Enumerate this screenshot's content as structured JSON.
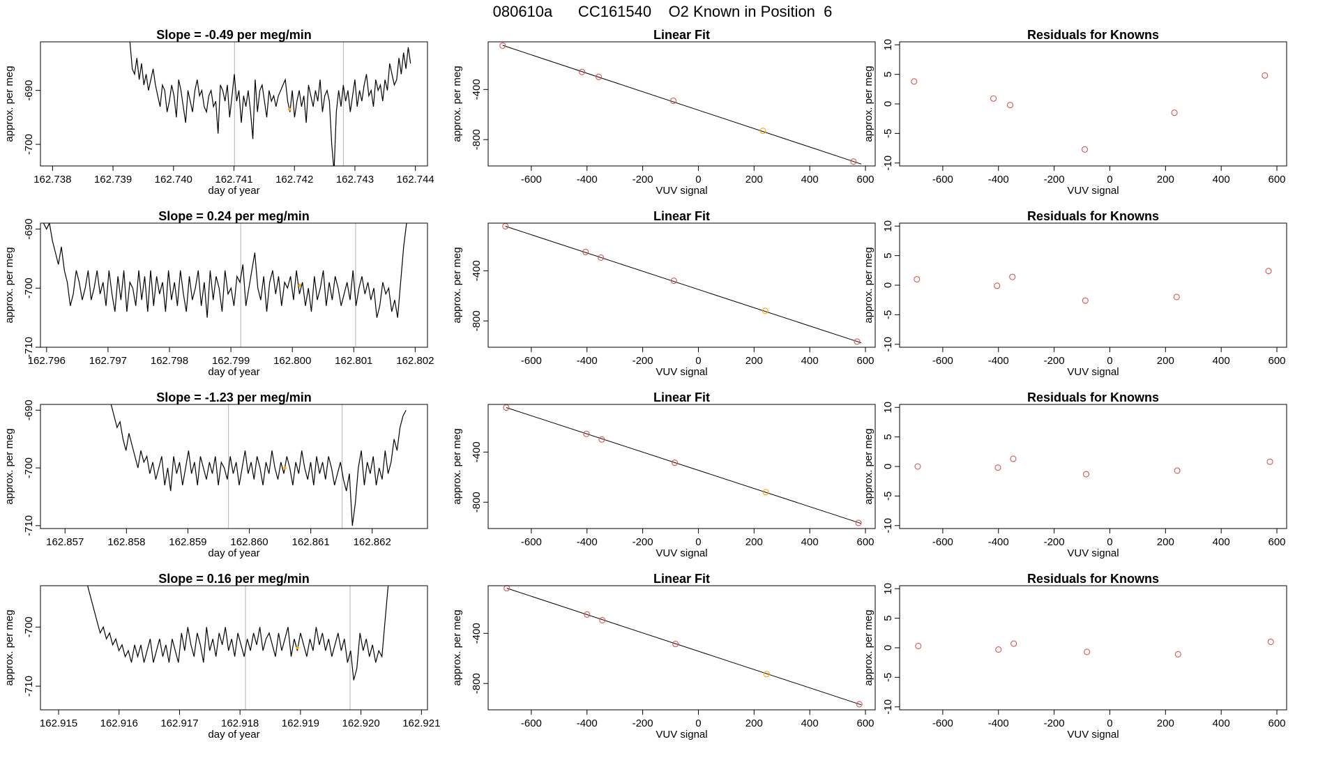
{
  "figure": {
    "title": "080610a      CC161540    O2 Known in Position  6"
  },
  "colors": {
    "line": "#000000",
    "frame": "#000000",
    "vline": "#bebebe",
    "point": "#d9534f",
    "highlight": "#ffa500"
  },
  "chart_data": [
    {
      "row": 1,
      "type": "line",
      "title": "Slope =  -0.49  per meg/min",
      "xlabel": "day of year",
      "ylabel": "approx. per meg",
      "xlim": [
        162.7378,
        162.7442
      ],
      "ylim": [
        -704,
        -681
      ],
      "xticks": [
        162.738,
        162.739,
        162.74,
        162.741,
        162.742,
        162.743,
        162.744
      ],
      "xtick_labels": [
        "162.738",
        "162.739",
        "162.740",
        "162.741",
        "162.742",
        "162.743",
        "162.744"
      ],
      "yticks": [
        -690,
        -700
      ],
      "ytick_labels": [
        "-690",
        "-700"
      ],
      "vlines": [
        162.74101,
        162.74281
      ],
      "x_start": 162.73928,
      "x_end": 162.74392,
      "y_values": [
        -681,
        -686,
        -687,
        -684,
        -688,
        -685,
        -689,
        -687,
        -690,
        -688,
        -686,
        -689,
        -691,
        -693,
        -689,
        -690,
        -694,
        -692,
        -689,
        -691,
        -695,
        -688,
        -690,
        -693,
        -696,
        -690,
        -692,
        -694,
        -690,
        -688,
        -691,
        -690,
        -693,
        -694,
        -691,
        -690,
        -693,
        -692,
        -698,
        -689,
        -690,
        -692,
        -689,
        -695,
        -691,
        -687,
        -692,
        -690,
        -696,
        -691,
        -693,
        -690,
        -694,
        -699,
        -688,
        -694,
        -690,
        -689,
        -692,
        -695,
        -690,
        -692,
        -691,
        -693,
        -691,
        -690,
        -689,
        -688,
        -692,
        -694,
        -690,
        -695,
        -692,
        -690,
        -693,
        -691,
        -696,
        -689,
        -691,
        -693,
        -690,
        -692,
        -688,
        -694,
        -691,
        -690,
        -692,
        -700,
        -705,
        -694,
        -690,
        -693,
        -689,
        -692,
        -690,
        -694,
        -691,
        -688,
        -693,
        -690,
        -692,
        -689,
        -687,
        -691,
        -690,
        -693,
        -688,
        -690,
        -689,
        -692,
        -688,
        -690,
        -685,
        -687,
        -689,
        -688,
        -684,
        -687,
        -683,
        -686,
        -682,
        -685
      ],
      "highlight": {
        "x": 162.74192,
        "y": -693.5
      }
    },
    {
      "row": 1,
      "type": "scatter",
      "title": "Linear Fit",
      "xlabel": "VUV signal",
      "ylabel": "approx. per meg",
      "xlim": [
        -755,
        635
      ],
      "ylim": [
        -1010,
        -20
      ],
      "xticks": [
        -600,
        -400,
        -200,
        0,
        200,
        400,
        600
      ],
      "xtick_labels": [
        "-600",
        "-400",
        "-200",
        "0",
        "200",
        "400",
        "600"
      ],
      "yticks": [
        -400,
        -800
      ],
      "ytick_labels": [
        "-400",
        "-800"
      ],
      "points": [
        {
          "x": -703,
          "y": -50
        },
        {
          "x": -418,
          "y": -260
        },
        {
          "x": -358,
          "y": -300
        },
        {
          "x": -90,
          "y": -490
        },
        {
          "x": 232,
          "y": -730
        },
        {
          "x": 557,
          "y": -975
        }
      ],
      "highlight_index": 4,
      "fit_line": {
        "x": [
          -703,
          585
        ],
        "y": [
          -48,
          -995
        ]
      }
    },
    {
      "row": 1,
      "type": "scatter",
      "title": "Residuals for Knowns",
      "xlabel": "VUV signal",
      "ylabel": "approx. per meg",
      "xlim": [
        -755,
        635
      ],
      "ylim": [
        -10.5,
        10.5
      ],
      "xticks": [
        -600,
        -400,
        -200,
        0,
        200,
        400,
        600
      ],
      "xtick_labels": [
        "-600",
        "-400",
        "-200",
        "0",
        "200",
        "400",
        "600"
      ],
      "yticks": [
        10,
        5,
        0,
        -5,
        -10
      ],
      "ytick_labels": [
        "10",
        "5",
        "0",
        "-5",
        "-10"
      ],
      "points": [
        {
          "x": -703,
          "y": 3.8
        },
        {
          "x": -418,
          "y": 0.9
        },
        {
          "x": -358,
          "y": -0.2
        },
        {
          "x": -90,
          "y": -7.7
        },
        {
          "x": 232,
          "y": -1.5
        },
        {
          "x": 557,
          "y": 4.8
        }
      ]
    },
    {
      "row": 2,
      "type": "line",
      "title": "Slope =  0.24  per meg/min",
      "xlabel": "day of year",
      "ylabel": "approx. per meg",
      "xlim": [
        162.7959,
        162.8022
      ],
      "ylim": [
        -710,
        -689
      ],
      "xticks": [
        162.796,
        162.797,
        162.798,
        162.799,
        162.8,
        162.801,
        162.802
      ],
      "xtick_labels": [
        "162.796",
        "162.797",
        "162.798",
        "162.799",
        "162.800",
        "162.801",
        "162.802"
      ],
      "yticks": [
        -690,
        -700,
        -710
      ],
      "ytick_labels": [
        "-690",
        "-700",
        "-710"
      ],
      "vlines": [
        162.79916,
        162.80103
      ],
      "x_start": 162.79595,
      "x_end": 162.80186,
      "y_values": [
        -689,
        -690,
        -689,
        -692,
        -694,
        -696,
        -693,
        -697,
        -699,
        -703,
        -701,
        -697,
        -699,
        -702,
        -700,
        -697,
        -702,
        -700,
        -697,
        -701,
        -699,
        -703,
        -697,
        -701,
        -704,
        -698,
        -702,
        -697,
        -704,
        -699,
        -700,
        -703,
        -697,
        -702,
        -698,
        -704,
        -697,
        -703,
        -698,
        -701,
        -699,
        -704,
        -697,
        -702,
        -699,
        -703,
        -697,
        -701,
        -704,
        -698,
        -702,
        -700,
        -697,
        -703,
        -699,
        -705,
        -697,
        -702,
        -698,
        -700,
        -704,
        -697,
        -701,
        -700,
        -703,
        -698,
        -699,
        -696,
        -703,
        -700,
        -697,
        -694,
        -700,
        -702,
        -698,
        -704,
        -699,
        -697,
        -701,
        -698,
        -703,
        -699,
        -700,
        -698,
        -702,
        -697,
        -701,
        -699,
        -703,
        -700,
        -704,
        -698,
        -702,
        -700,
        -697,
        -703,
        -699,
        -702,
        -698,
        -700,
        -703,
        -701,
        -699,
        -702,
        -697,
        -703,
        -700,
        -698,
        -701,
        -699,
        -702,
        -700,
        -705,
        -703,
        -699,
        -701,
        -700,
        -704,
        -702,
        -705,
        -699,
        -693,
        -689
      ],
      "highlight": {
        "x": 162.80012,
        "y": -699.5
      }
    },
    {
      "row": 2,
      "type": "scatter",
      "title": "Linear Fit",
      "xlabel": "VUV signal",
      "ylabel": "approx. per meg",
      "xlim": [
        -755,
        635
      ],
      "ylim": [
        -1010,
        -20
      ],
      "xticks": [
        -600,
        -400,
        -200,
        0,
        200,
        400,
        600
      ],
      "xtick_labels": [
        "-600",
        "-400",
        "-200",
        "0",
        "200",
        "400",
        "600"
      ],
      "yticks": [
        -400,
        -800
      ],
      "ytick_labels": [
        "-400",
        "-800"
      ],
      "points": [
        {
          "x": -693,
          "y": -45
        },
        {
          "x": -405,
          "y": -250
        },
        {
          "x": -350,
          "y": -295
        },
        {
          "x": -88,
          "y": -480
        },
        {
          "x": 240,
          "y": -720
        },
        {
          "x": 570,
          "y": -965
        }
      ],
      "highlight_index": 4,
      "fit_line": {
        "x": [
          -693,
          585
        ],
        "y": [
          -45,
          -975
        ]
      }
    },
    {
      "row": 2,
      "type": "scatter",
      "title": "Residuals for Knowns",
      "xlabel": "VUV signal",
      "ylabel": "approx. per meg",
      "xlim": [
        -755,
        635
      ],
      "ylim": [
        -10.5,
        10.5
      ],
      "xticks": [
        -600,
        -400,
        -200,
        0,
        200,
        400,
        600
      ],
      "xtick_labels": [
        "-600",
        "-400",
        "-200",
        "0",
        "200",
        "400",
        "600"
      ],
      "yticks": [
        10,
        5,
        0,
        -5,
        -10
      ],
      "ytick_labels": [
        "10",
        "5",
        "0",
        "-5",
        "-10"
      ],
      "points": [
        {
          "x": -693,
          "y": 1.0
        },
        {
          "x": -405,
          "y": -0.1
        },
        {
          "x": -350,
          "y": 1.4
        },
        {
          "x": -88,
          "y": -2.6
        },
        {
          "x": 240,
          "y": -2.0
        },
        {
          "x": 570,
          "y": 2.4
        }
      ]
    },
    {
      "row": 3,
      "type": "line",
      "title": "Slope =  -1.23  per meg/min",
      "xlabel": "day of year",
      "ylabel": "approx. per meg",
      "xlim": [
        162.8566,
        162.8629
      ],
      "ylim": [
        -710.5,
        -689
      ],
      "xticks": [
        162.857,
        162.858,
        162.859,
        162.86,
        162.861,
        162.862
      ],
      "xtick_labels": [
        "162.857",
        "162.858",
        "162.859",
        "162.860",
        "162.861",
        "162.862"
      ],
      "yticks": [
        -690,
        -700,
        -710
      ],
      "ytick_labels": [
        "-690",
        "-700",
        "-710"
      ],
      "vlines": [
        162.85966,
        162.86151
      ],
      "x_start": 162.85775,
      "x_end": 162.86255,
      "y_values": [
        -689,
        -691,
        -693,
        -692,
        -695,
        -697,
        -694,
        -696,
        -698,
        -700,
        -697,
        -699,
        -698,
        -701,
        -699,
        -702,
        -700,
        -698,
        -703,
        -700,
        -704,
        -698,
        -701,
        -699,
        -703,
        -700,
        -697,
        -701,
        -699,
        -703,
        -698,
        -700,
        -702,
        -699,
        -701,
        -698,
        -703,
        -699,
        -700,
        -702,
        -698,
        -701,
        -699,
        -703,
        -700,
        -697,
        -701,
        -699,
        -702,
        -698,
        -700,
        -703,
        -699,
        -701,
        -697,
        -700,
        -702,
        -699,
        -701,
        -698,
        -700,
        -703,
        -699,
        -701,
        -697,
        -700,
        -702,
        -699,
        -703,
        -698,
        -701,
        -699,
        -702,
        -698,
        -700,
        -703,
        -701,
        -699,
        -702,
        -704,
        -701,
        -710,
        -706,
        -700,
        -697,
        -703,
        -699,
        -701,
        -698,
        -703,
        -700,
        -702,
        -697,
        -701,
        -699,
        -695,
        -697,
        -693,
        -691,
        -690
      ],
      "highlight": {
        "x": 162.86058,
        "y": -700
      }
    },
    {
      "row": 3,
      "type": "scatter",
      "title": "Linear Fit",
      "xlabel": "VUV signal",
      "ylabel": "approx. per meg",
      "xlim": [
        -755,
        635
      ],
      "ylim": [
        -1010,
        -20
      ],
      "xticks": [
        -600,
        -400,
        -200,
        0,
        200,
        400,
        600
      ],
      "xtick_labels": [
        "-600",
        "-400",
        "-200",
        "0",
        "200",
        "400",
        "600"
      ],
      "yticks": [
        -400,
        -800
      ],
      "ytick_labels": [
        "-400",
        "-800"
      ],
      "points": [
        {
          "x": -690,
          "y": -45
        },
        {
          "x": -402,
          "y": -255
        },
        {
          "x": -347,
          "y": -300
        },
        {
          "x": -85,
          "y": -485
        },
        {
          "x": 242,
          "y": -720
        },
        {
          "x": 575,
          "y": -965
        }
      ],
      "highlight_index": 4,
      "fit_line": {
        "x": [
          -690,
          585
        ],
        "y": [
          -45,
          -970
        ]
      }
    },
    {
      "row": 3,
      "type": "scatter",
      "title": "Residuals for Knowns",
      "xlabel": "VUV signal",
      "ylabel": "approx. per meg",
      "xlim": [
        -755,
        635
      ],
      "ylim": [
        -10.5,
        10.5
      ],
      "xticks": [
        -600,
        -400,
        -200,
        0,
        200,
        400,
        600
      ],
      "xtick_labels": [
        "-600",
        "-400",
        "-200",
        "0",
        "200",
        "400",
        "600"
      ],
      "yticks": [
        10,
        5,
        0,
        -5,
        -10
      ],
      "ytick_labels": [
        "10",
        "5",
        "0",
        "-5",
        "-10"
      ],
      "points": [
        {
          "x": -690,
          "y": 0.0
        },
        {
          "x": -402,
          "y": -0.2
        },
        {
          "x": -347,
          "y": 1.3
        },
        {
          "x": -85,
          "y": -1.3
        },
        {
          "x": 242,
          "y": -0.7
        },
        {
          "x": 575,
          "y": 0.8
        }
      ]
    },
    {
      "row": 4,
      "type": "line",
      "title": "Slope =  0.16  per meg/min",
      "xlabel": "day of year",
      "ylabel": "approx. per meg",
      "xlim": [
        162.9147,
        162.9211
      ],
      "ylim": [
        -714,
        -693
      ],
      "xticks": [
        162.915,
        162.916,
        162.917,
        162.918,
        162.919,
        162.92,
        162.921
      ],
      "xtick_labels": [
        "162.915",
        "162.916",
        "162.917",
        "162.918",
        "162.919",
        "162.920",
        "162.921"
      ],
      "yticks": [
        -700,
        -710
      ],
      "ytick_labels": [
        "-700",
        "-710"
      ],
      "vlines": [
        162.91809,
        162.91982
      ],
      "x_start": 162.91548,
      "x_end": 162.92045,
      "y_values": [
        -693,
        -695,
        -697,
        -699,
        -701,
        -700,
        -702,
        -701,
        -703,
        -702,
        -704,
        -703,
        -705,
        -704,
        -706,
        -703,
        -705,
        -703,
        -706,
        -704,
        -702,
        -706,
        -704,
        -702,
        -705,
        -703,
        -706,
        -702,
        -704,
        -706,
        -701,
        -704,
        -700,
        -703,
        -705,
        -701,
        -703,
        -706,
        -700,
        -704,
        -702,
        -705,
        -701,
        -703,
        -700,
        -704,
        -702,
        -705,
        -701,
        -703,
        -705,
        -702,
        -704,
        -701,
        -703,
        -700,
        -704,
        -702,
        -701,
        -703,
        -705,
        -701,
        -704,
        -702,
        -700,
        -705,
        -702,
        -704,
        -701,
        -703,
        -705,
        -702,
        -704,
        -700,
        -703,
        -701,
        -704,
        -702,
        -705,
        -703,
        -701,
        -704,
        -702,
        -706,
        -704,
        -709,
        -707,
        -701,
        -704,
        -702,
        -705,
        -703,
        -706,
        -704,
        -705,
        -699,
        -693
      ],
      "highlight": {
        "x": 162.91895,
        "y": -703.5
      }
    },
    {
      "row": 4,
      "type": "scatter",
      "title": "Linear Fit",
      "xlabel": "VUV signal",
      "ylabel": "approx. per meg",
      "xlim": [
        -755,
        635
      ],
      "ylim": [
        -1010,
        -20
      ],
      "xticks": [
        -600,
        -400,
        -200,
        0,
        200,
        400,
        600
      ],
      "xtick_labels": [
        "-600",
        "-400",
        "-200",
        "0",
        "200",
        "400",
        "600"
      ],
      "yticks": [
        -400,
        -800
      ],
      "ytick_labels": [
        "-400",
        "-800"
      ],
      "points": [
        {
          "x": -688,
          "y": -40
        },
        {
          "x": -400,
          "y": -250
        },
        {
          "x": -345,
          "y": -295
        },
        {
          "x": -82,
          "y": -485
        },
        {
          "x": 245,
          "y": -725
        },
        {
          "x": 578,
          "y": -965
        }
      ],
      "highlight_index": 4,
      "fit_line": {
        "x": [
          -688,
          585
        ],
        "y": [
          -40,
          -970
        ]
      }
    },
    {
      "row": 4,
      "type": "scatter",
      "title": "Residuals for Knowns",
      "xlabel": "VUV signal",
      "ylabel": "approx. per meg",
      "xlim": [
        -755,
        635
      ],
      "ylim": [
        -10.5,
        10.5
      ],
      "xticks": [
        -600,
        -400,
        -200,
        0,
        200,
        400,
        600
      ],
      "xtick_labels": [
        "-600",
        "-400",
        "-200",
        "0",
        "200",
        "400",
        "600"
      ],
      "yticks": [
        10,
        5,
        0,
        -5,
        -10
      ],
      "ytick_labels": [
        "10",
        "5",
        "0",
        "-5",
        "-10"
      ],
      "points": [
        {
          "x": -688,
          "y": 0.3
        },
        {
          "x": -400,
          "y": -0.3
        },
        {
          "x": -345,
          "y": 0.7
        },
        {
          "x": -82,
          "y": -0.7
        },
        {
          "x": 245,
          "y": -1.1
        },
        {
          "x": 578,
          "y": 1.0
        }
      ]
    }
  ]
}
